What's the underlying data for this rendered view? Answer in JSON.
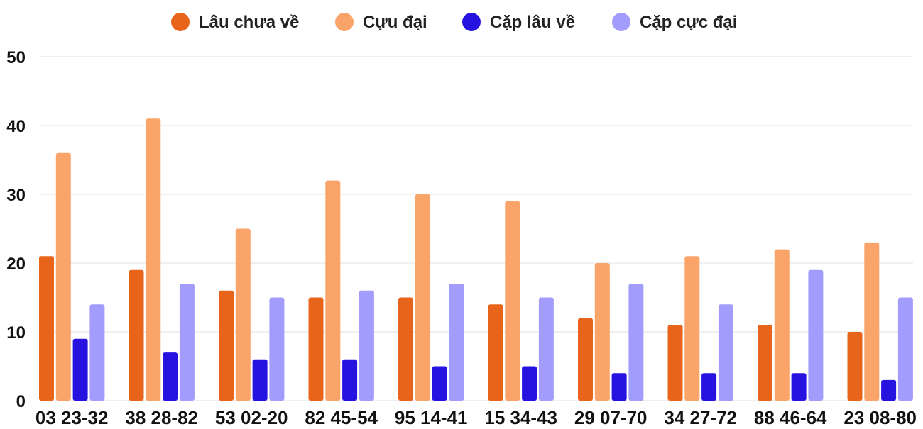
{
  "chart_data": {
    "type": "bar",
    "title": "",
    "xlabel": "",
    "ylabel": "",
    "ylim": [
      0,
      50
    ],
    "yticks": [
      0,
      10,
      20,
      30,
      40,
      50
    ],
    "grid": true,
    "legend_position": "top",
    "categories": [
      "03 23-32",
      "38 28-82",
      "53 02-20",
      "82 45-54",
      "95 14-41",
      "15 34-43",
      "29 07-70",
      "34 27-72",
      "88 46-64",
      "23 08-80"
    ],
    "series": [
      {
        "name": "Lâu chưa về",
        "color": "#e8641b",
        "values": [
          21,
          19,
          16,
          15,
          15,
          14,
          12,
          11,
          11,
          10
        ]
      },
      {
        "name": "Cựu đại",
        "color": "#fba469",
        "values": [
          36,
          41,
          25,
          32,
          30,
          29,
          20,
          21,
          22,
          23
        ]
      },
      {
        "name": "Cặp lâu về",
        "color": "#2713e0",
        "values": [
          9,
          7,
          6,
          6,
          5,
          5,
          4,
          4,
          4,
          3
        ]
      },
      {
        "name": "Cặp cực đại",
        "color": "#a29cfc",
        "values": [
          14,
          17,
          15,
          16,
          17,
          15,
          17,
          14,
          19,
          15
        ]
      }
    ]
  }
}
